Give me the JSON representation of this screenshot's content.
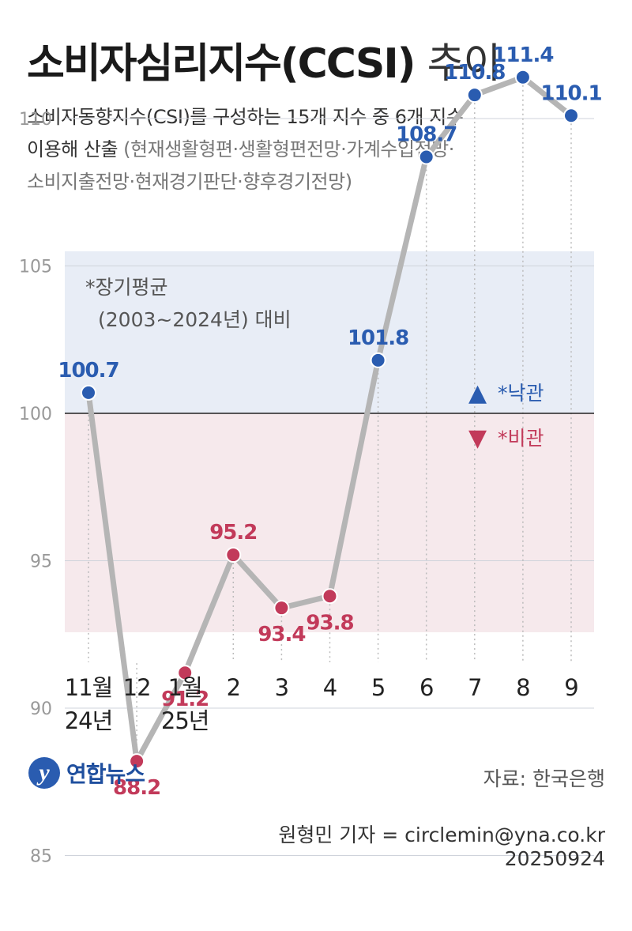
{
  "title": {
    "main": "소비자심리지수(CCSI)",
    "suffix": "추이"
  },
  "subtitle": {
    "line1": "소비자동향지수(CSI)를 구성하는 15개 지수 중 6개 지수",
    "line2_dark": "이용해 산출",
    "line2_grey": "(현재생활형편·생활형편전망·가계수입전망·",
    "line3_grey": "소비지출전망·현재경기판단·향후경기전망)"
  },
  "annotation": {
    "line1": "*장기평균",
    "line2": "(2003~2024년) 대비"
  },
  "legend": {
    "optimistic_symbol": "▲",
    "optimistic": "*낙관",
    "pessimistic_symbol": "▼",
    "pessimistic": "*비관"
  },
  "colors": {
    "optimistic": "#2a5cb0",
    "pessimistic": "#c23a5a",
    "line": "#b5b5b5",
    "optimistic_band": "#e8edf6",
    "pessimistic_band": "#f6e9ec"
  },
  "chart_data": {
    "type": "line",
    "categories": [
      [
        "11월",
        "24년"
      ],
      [
        "12"
      ],
      [
        "1월",
        "25년"
      ],
      [
        "2"
      ],
      [
        "3"
      ],
      [
        "4"
      ],
      [
        "5"
      ],
      [
        "6"
      ],
      [
        "7"
      ],
      [
        "8"
      ],
      [
        "9"
      ]
    ],
    "values": [
      100.7,
      88.2,
      91.2,
      95.2,
      93.4,
      93.8,
      101.8,
      108.7,
      110.8,
      111.4,
      110.1
    ],
    "value_labels": [
      "100.7",
      "88.2",
      "91.2",
      "95.2",
      "93.4",
      "93.8",
      "101.8",
      "108.7",
      "110.8",
      "111.4",
      "110.1"
    ],
    "label_positions": [
      "above",
      "below",
      "below",
      "above",
      "below",
      "below",
      "above",
      "above",
      "above",
      "above",
      "above"
    ],
    "yticks": [
      85,
      90,
      95,
      100,
      105,
      110
    ],
    "ylim": [
      85,
      110
    ],
    "baseline": 100,
    "grid": true
  },
  "footer": {
    "logo_letter": "y",
    "logo_text": "연합뉴스",
    "source": "자료: 한국은행",
    "reporter": "원형민 기자 = circlemin@yna.co.kr",
    "date": "20250924"
  }
}
